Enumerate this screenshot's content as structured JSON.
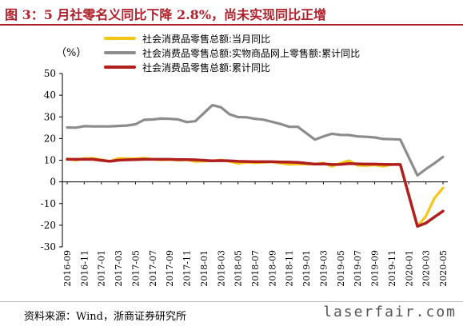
{
  "header": {
    "title": "图 3：5 月社零名义同比下降 2.8%，尚未实现同比正增"
  },
  "footer": {
    "source": "资料来源：Wind，浙商证券研究所",
    "watermark": "laserfair.com"
  },
  "chart_data": {
    "type": "line",
    "unit": "（%）",
    "ylim": [
      -30,
      50
    ],
    "yticks": [
      -30,
      -20,
      -10,
      0,
      10,
      20,
      30,
      40,
      50
    ],
    "grid": false,
    "legend_position": "top",
    "x": [
      "2016-09",
      "2016-10",
      "2016-11",
      "2016-12",
      "2017-01",
      "2017-02",
      "2017-03",
      "2017-04",
      "2017-05",
      "2017-06",
      "2017-07",
      "2017-08",
      "2017-09",
      "2017-10",
      "2017-11",
      "2017-12",
      "2018-01",
      "2018-02",
      "2018-03",
      "2018-04",
      "2018-05",
      "2018-06",
      "2018-07",
      "2018-08",
      "2018-09",
      "2018-10",
      "2018-11",
      "2018-12",
      "2019-01",
      "2019-02",
      "2019-03",
      "2019-04",
      "2019-05",
      "2019-06",
      "2019-07",
      "2019-08",
      "2019-09",
      "2019-10",
      "2019-11",
      "2019-12",
      "2020-01",
      "2020-02",
      "2020-03",
      "2020-04",
      "2020-05"
    ],
    "xtick_labels": [
      "2016-09",
      "2016-11",
      "2017-01",
      "2017-03",
      "2017-05",
      "2017-07",
      "2017-09",
      "2017-11",
      "2018-01",
      "2018-03",
      "2018-05",
      "2018-07",
      "2018-09",
      "2018-11",
      "2019-01",
      "2019-03",
      "2019-05",
      "2019-07",
      "2019-09",
      "2019-11",
      "2020-01",
      "2020-03",
      "2020-05"
    ],
    "series": [
      {
        "name": "社会消费品零售总额:当月同比",
        "color": "#f5c518",
        "values": [
          10.7,
          10.0,
          10.8,
          10.9,
          null,
          9.5,
          10.9,
          10.7,
          10.7,
          11.0,
          10.4,
          10.1,
          10.3,
          10.0,
          10.2,
          9.4,
          null,
          9.7,
          10.1,
          9.4,
          8.5,
          9.0,
          8.8,
          9.0,
          9.2,
          8.6,
          8.1,
          8.2,
          null,
          8.2,
          8.7,
          7.2,
          8.6,
          9.8,
          7.6,
          7.5,
          7.8,
          7.2,
          8.0,
          8.0,
          null,
          -20.5,
          -15.8,
          -7.5,
          -2.8
        ]
      },
      {
        "name": "社会消费品零售总额:实物商品网上零售额:累计同比",
        "color": "#8c8c8c",
        "values": [
          25.1,
          25.0,
          25.7,
          25.6,
          null,
          25.6,
          25.8,
          26.0,
          26.6,
          28.6,
          28.8,
          29.2,
          29.1,
          28.8,
          27.6,
          28.0,
          null,
          35.4,
          34.4,
          31.2,
          29.9,
          29.8,
          29.1,
          28.7,
          27.7,
          26.7,
          25.4,
          25.4,
          null,
          19.5,
          21.0,
          22.2,
          21.7,
          21.6,
          21.0,
          20.8,
          20.5,
          19.8,
          19.7,
          19.5,
          null,
          3.0,
          5.9,
          8.6,
          11.5
        ]
      },
      {
        "name": "社会消费品零售总额:累计同比",
        "color": "#b01e1e",
        "values": [
          10.4,
          10.4,
          10.4,
          10.4,
          null,
          9.5,
          10.0,
          10.2,
          10.3,
          10.4,
          10.4,
          10.4,
          10.4,
          10.3,
          10.3,
          10.2,
          null,
          9.7,
          9.8,
          9.7,
          9.5,
          9.4,
          9.3,
          9.3,
          9.3,
          9.2,
          9.1,
          9.0,
          null,
          8.2,
          8.3,
          8.0,
          8.1,
          8.4,
          8.3,
          8.2,
          8.2,
          8.1,
          8.0,
          8.0,
          null,
          -20.5,
          -19.0,
          -16.2,
          -13.5
        ]
      }
    ]
  }
}
